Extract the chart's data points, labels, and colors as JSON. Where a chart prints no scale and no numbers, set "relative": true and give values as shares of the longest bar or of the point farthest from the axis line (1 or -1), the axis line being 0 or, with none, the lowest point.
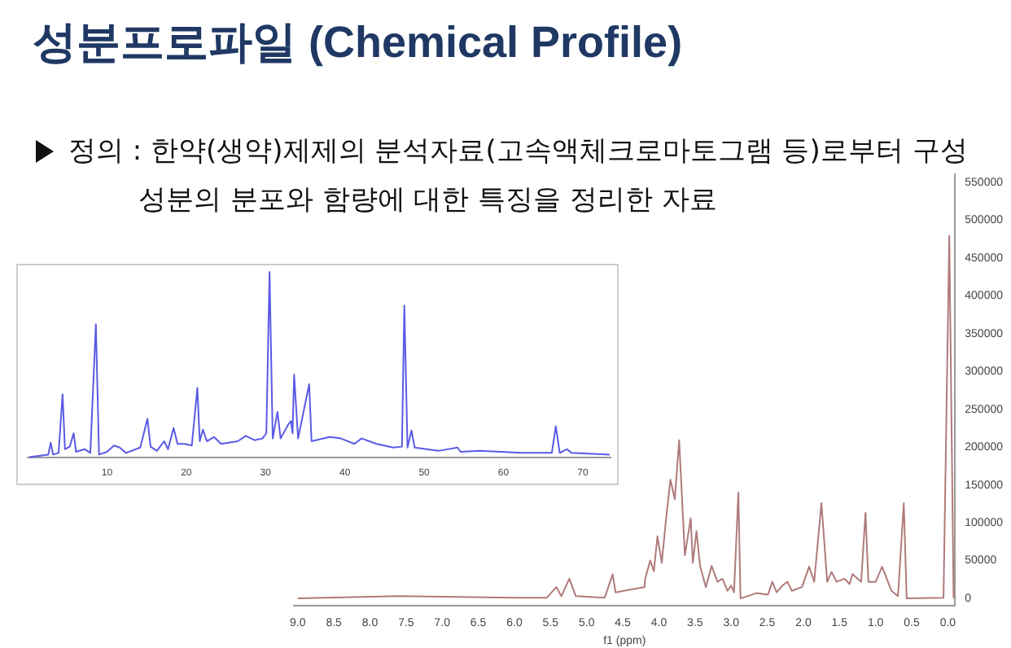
{
  "chart_data": [
    {
      "type": "line",
      "title": "성분프로파일 (Chemical Profile)",
      "subtitle": "정의 : 한약(생약)제제의 분석자료(고속액체크로마토그램 등)로부터 구성 성분의 분포와 함량에 대한 특징을 정리한 자료",
      "relative": true,
      "marker": "none",
      "grid": false,
      "legend": false,
      "xlim": [
        0,
        73.5
      ],
      "xticks": [
        10,
        20,
        30,
        40,
        50,
        60,
        70
      ],
      "x": [
        0.2,
        2.6,
        2.9,
        3.2,
        3.9,
        4.4,
        4.7,
        5.3,
        5.8,
        6.1,
        7.2,
        7.9,
        8.6,
        9.0,
        10.0,
        10.9,
        11.6,
        12.4,
        14.2,
        15.1,
        15.5,
        16.3,
        17.2,
        17.7,
        18.4,
        18.9,
        19.8,
        20.7,
        21.4,
        21.7,
        22.1,
        22.6,
        23.5,
        24.4,
        26.5,
        27.5,
        28.6,
        29.6,
        30.1,
        30.5,
        30.9,
        31.5,
        31.9,
        32.8,
        33.2,
        33.4,
        33.6,
        34.1,
        35.5,
        35.8,
        38.1,
        39.5,
        41.2,
        42.1,
        44.0,
        46.1,
        47.2,
        47.5,
        47.9,
        48.4,
        48.8,
        51.8,
        54.2,
        54.6,
        57.0,
        62.3,
        66.1,
        66.6,
        67.1,
        68.0,
        68.6,
        73.4
      ],
      "series": [
        {
          "color": "#5a5ae6",
          "values": [
            0,
            0.014,
            0.078,
            0.014,
            0.023,
            0.339,
            0.043,
            0.057,
            0.129,
            0.029,
            0.043,
            0.023,
            0.718,
            0.014,
            0.029,
            0.063,
            0.052,
            0.023,
            0.052,
            0.207,
            0.057,
            0.034,
            0.086,
            0.043,
            0.158,
            0.072,
            0.072,
            0.063,
            0.374,
            0.086,
            0.149,
            0.086,
            0.109,
            0.072,
            0.086,
            0.115,
            0.092,
            0.101,
            0.129,
            1.0,
            0.101,
            0.244,
            0.101,
            0.172,
            0.195,
            0.129,
            0.445,
            0.101,
            0.394,
            0.086,
            0.109,
            0.101,
            0.072,
            0.101,
            0.072,
            0.052,
            0.057,
            0.819,
            0.052,
            0.144,
            0.052,
            0.034,
            0.052,
            0.029,
            0.034,
            0.023,
            0.023,
            0.167,
            0.023,
            0.043,
            0.023,
            0.014
          ]
        }
      ]
    },
    {
      "type": "line",
      "xlabel": "f1 (ppm)",
      "marker": "none",
      "grid": false,
      "legend": false,
      "xlim": [
        9.05,
        -0.1
      ],
      "ylim": [
        -10000,
        560000
      ],
      "xticks": [
        {
          "value": 9,
          "label": "9.0"
        },
        {
          "value": 8.5,
          "label": "8.5"
        },
        {
          "value": 8,
          "label": "8.0"
        },
        {
          "value": 7.5,
          "label": "7.5"
        },
        {
          "value": 7,
          "label": "7.0"
        },
        {
          "value": 6.5,
          "label": "6.5"
        },
        {
          "value": 6,
          "label": "6.0"
        },
        {
          "value": 5.5,
          "label": "5.5"
        },
        {
          "value": 5,
          "label": "5.0"
        },
        {
          "value": 4.5,
          "label": "4.5"
        },
        {
          "value": 4,
          "label": "4.0"
        },
        {
          "value": 3.5,
          "label": "3.5"
        },
        {
          "value": 3,
          "label": "3.0"
        },
        {
          "value": 2.5,
          "label": "2.5"
        },
        {
          "value": 2,
          "label": "2.0"
        },
        {
          "value": 1.5,
          "label": "1.5"
        },
        {
          "value": 1,
          "label": "1.0"
        },
        {
          "value": 0.5,
          "label": "0.5"
        },
        {
          "value": 0,
          "label": "0.0"
        }
      ],
      "yticks": [
        0,
        50000,
        100000,
        150000,
        200000,
        250000,
        300000,
        350000,
        400000,
        450000,
        500000,
        550000
      ],
      "x": [
        9.0,
        7.6,
        6.0,
        5.55,
        5.42,
        5.35,
        5.24,
        5.15,
        4.75,
        4.64,
        4.6,
        4.2,
        4.19,
        4.12,
        4.07,
        4.02,
        3.96,
        3.9,
        3.84,
        3.78,
        3.72,
        3.64,
        3.56,
        3.53,
        3.48,
        3.43,
        3.35,
        3.27,
        3.19,
        3.12,
        3.05,
        3.0,
        2.96,
        2.9,
        2.87,
        2.65,
        2.49,
        2.43,
        2.37,
        2.29,
        2.22,
        2.16,
        2.02,
        1.92,
        1.85,
        1.75,
        1.67,
        1.61,
        1.54,
        1.43,
        1.36,
        1.32,
        1.2,
        1.14,
        1.1,
        1.0,
        0.91,
        0.78,
        0.69,
        0.61,
        0.57,
        0.06,
        -0.02,
        -0.08
      ],
      "series": [
        {
          "color": "#b07a7a",
          "values": [
            0,
            3000,
            1000,
            1000,
            15000,
            3000,
            26000,
            3000,
            1000,
            32000,
            8000,
            15000,
            26000,
            50000,
            36000,
            82000,
            47000,
            106000,
            157000,
            131000,
            209000,
            57000,
            106000,
            47000,
            89000,
            43000,
            15000,
            43000,
            22000,
            26000,
            10000,
            17000,
            8000,
            140000,
            0,
            7000,
            5000,
            22000,
            8000,
            17000,
            22000,
            10000,
            15000,
            42000,
            22000,
            126000,
            22000,
            35000,
            22000,
            26000,
            19000,
            32000,
            22000,
            113000,
            22000,
            22000,
            42000,
            10000,
            3000,
            126000,
            0,
            1000,
            479000,
            0
          ]
        }
      ]
    }
  ]
}
